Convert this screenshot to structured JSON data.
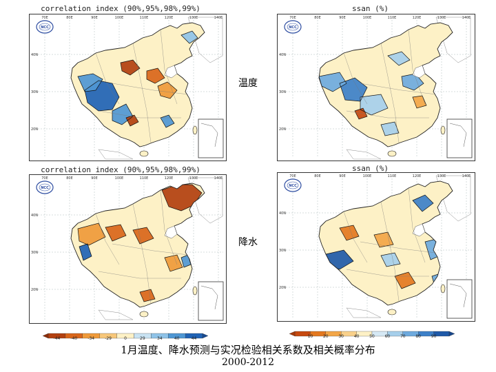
{
  "titles": {
    "tl": "correlation index (90%,95%,98%,99%)",
    "tr": "ssan (%)",
    "bl": "correlation index (90%,95%,98%,99%)",
    "br": "ssan (%)"
  },
  "row_labels": {
    "temperature": "温度",
    "precipitation": "降水"
  },
  "lon_labels": [
    "70E",
    "80E",
    "90E",
    "100E",
    "110E",
    "120E",
    "130E",
    "140E"
  ],
  "lat_labels": [
    "40N",
    "30N",
    "20N"
  ],
  "colorbar_left": {
    "ticks": [
      "-44",
      "-40",
      "-34",
      "-29",
      "0",
      "29",
      "34",
      "40",
      "44"
    ],
    "colors": [
      "#b2400f",
      "#d9661a",
      "#ef9a3a",
      "#f7c77a",
      "#fdf1c6",
      "#c9e3f3",
      "#8fc3e8",
      "#4f97d4",
      "#2063b5"
    ]
  },
  "colorbar_right": {
    "ticks": [
      "10",
      "20",
      "30",
      "40",
      "50",
      "60",
      "70",
      "80",
      "90"
    ],
    "colors": [
      "#c7490f",
      "#e3781f",
      "#f3a647",
      "#f9d18b",
      "#fdf1c6",
      "#d6e9f5",
      "#a6cfeb",
      "#6eaade",
      "#3d80c8",
      "#1f5aa8"
    ]
  },
  "caption": {
    "line1": "1月温度、降水预测与实况检验相关系数及相关概率分布",
    "line2": "2000-2012"
  },
  "logo_text": "NCC"
}
